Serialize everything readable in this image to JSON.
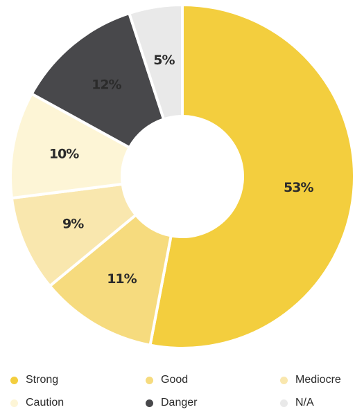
{
  "chart_data": {
    "type": "pie",
    "variant": "donut",
    "title": "",
    "categories": [
      "Strong",
      "Good",
      "Mediocre",
      "Caution",
      "Danger",
      "N/A"
    ],
    "values": [
      53,
      11,
      9,
      10,
      12,
      5
    ],
    "labels": [
      "53%",
      "11%",
      "9%",
      "10%",
      "12%",
      "5%"
    ],
    "colors": [
      "#F3CE3E",
      "#F6DB7E",
      "#F9E7AE",
      "#FDF5D6",
      "#48484B",
      "#E9E9E9"
    ],
    "legend_position": "bottom"
  },
  "legend": {
    "items": [
      {
        "label": "Strong",
        "color": "#F3CE3E"
      },
      {
        "label": "Good",
        "color": "#F6DB7E"
      },
      {
        "label": "Mediocre",
        "color": "#F9E7AE"
      },
      {
        "label": "Caution",
        "color": "#FDF5D6"
      },
      {
        "label": "Danger",
        "color": "#48484B"
      },
      {
        "label": "N/A",
        "color": "#E9E9E9"
      }
    ]
  }
}
